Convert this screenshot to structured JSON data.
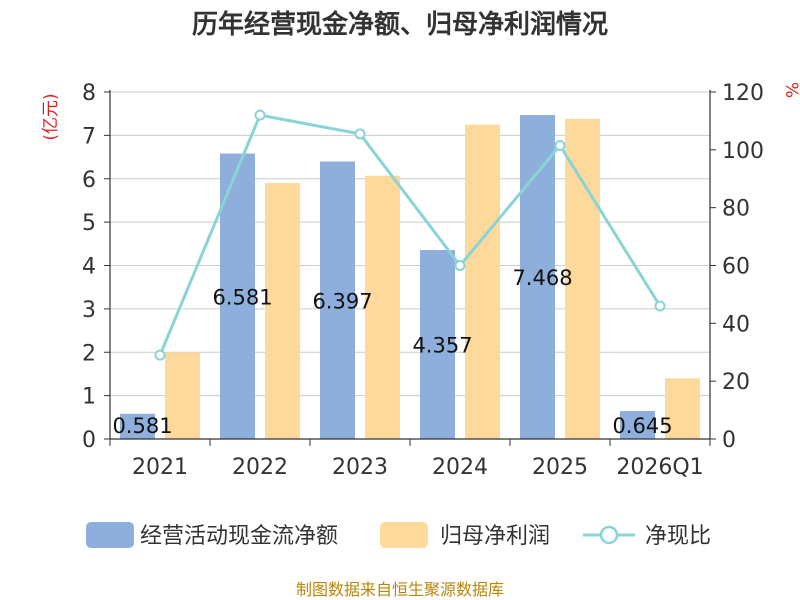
{
  "chart_data": {
    "type": "bar",
    "title": "历年经营现金净额、归母净利润情况",
    "categories": [
      "2021",
      "2022",
      "2023",
      "2024",
      "2025",
      "2026Q1"
    ],
    "y_left_unit": "(亿元)",
    "y_right_unit": "%",
    "ylim_left": [
      0,
      8
    ],
    "ylim_right": [
      0,
      120
    ],
    "yticks_left": [
      "0",
      "1",
      "2",
      "3",
      "4",
      "5",
      "6",
      "7",
      "8"
    ],
    "yticks_right": [
      "0",
      "20",
      "40",
      "60",
      "80",
      "100",
      "120"
    ],
    "grid": true,
    "legend_position": "bottom",
    "series": [
      {
        "name": "经营活动现金流净额",
        "type": "bar",
        "axis": "left",
        "color": "#8eaedc",
        "values": [
          0.581,
          6.581,
          6.397,
          4.357,
          7.468,
          0.645
        ],
        "labels": [
          "0.581",
          "6.581",
          "6.397",
          "4.357",
          "7.468",
          "0.645"
        ]
      },
      {
        "name": "归母净利润",
        "type": "bar",
        "axis": "left",
        "color": "#fdd99b",
        "values": [
          2.0,
          5.9,
          6.07,
          7.25,
          7.38,
          1.4
        ]
      },
      {
        "name": "净现比",
        "type": "line",
        "axis": "right",
        "color": "#8ad4d6",
        "values": [
          29,
          112,
          105.5,
          60,
          101.5,
          46
        ]
      }
    ]
  },
  "source": "制图数据来自恒生聚源数据库"
}
